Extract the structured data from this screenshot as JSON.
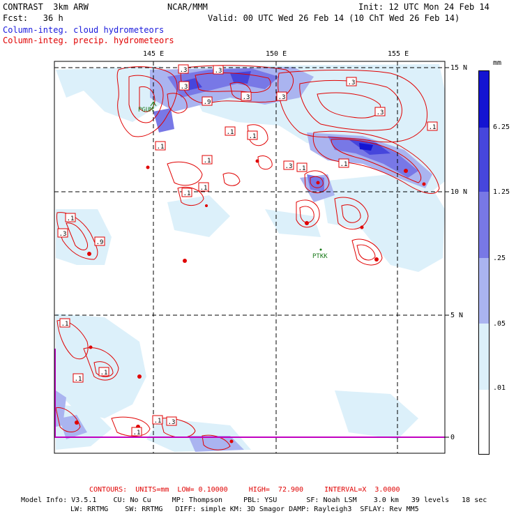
{
  "header": {
    "model": "CONTRAST  3km ARW",
    "center": "NCAR/MMM",
    "init": "Init: 12 UTC Mon 24 Feb 14",
    "fcst": "Fcst:   36 h",
    "valid": "Valid: 00 UTC Wed 26 Feb 14 (10 ChT Wed 26 Feb 14)",
    "field_blue": "Column-integ. cloud hydrometeors",
    "field_red": "Column-integ. precip. hydrometeors"
  },
  "axes": {
    "lon_labels": [
      "145 E",
      "150 E",
      "155 E"
    ],
    "lat_labels": [
      "15 N",
      "10 N",
      "5 N",
      "0"
    ]
  },
  "stations": [
    "PGUM",
    "PTKK"
  ],
  "contour_labels": [
    ".3",
    ".1",
    ".3",
    ".3",
    ".9",
    ".1",
    ".3",
    ".1",
    ".3",
    ".1",
    ".1",
    ".3",
    ".1",
    ".1",
    ".3",
    ".9",
    ".3",
    ".1",
    ".3",
    ".1",
    ".1",
    ".3",
    ".1",
    ".1",
    ".1",
    ".1",
    ".1"
  ],
  "colorbar": {
    "unit": "mm",
    "labels": [
      "6.25",
      "1.25",
      ".25",
      ".05",
      ".01"
    ],
    "colors": [
      "#1414d2",
      "#4646dc",
      "#7878e6",
      "#aab4f0",
      "#dcf0fa",
      "#ffffff"
    ]
  },
  "footer": {
    "contours": "CONTOURS:  UNITS=mm  LOW= 0.10000     HIGH=  72.900     INTERVAL=X  3.0000",
    "model_info_1": "Model Info: V3.5.1    CU: No Cu     MP: Thompson     PBL: YSU       SF: Noah LSM    3.0 km   39 levels   18 sec",
    "model_info_2": "LW: RRTMG    SW: RRTMG   DIFF: simple KM: 3D Smagor DAMP: Rayleigh3  SFLAY: Rev MM5"
  },
  "colors": {
    "contour": "#e00000",
    "grid": "#000000",
    "equator": "#c000c0"
  }
}
